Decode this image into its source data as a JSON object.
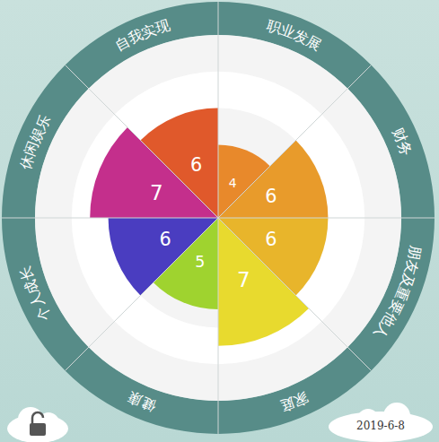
{
  "chart_data": {
    "type": "polar_area",
    "categories": [
      "职业发展",
      "财务",
      "朋友及重要他人",
      "家庭",
      "健康",
      "个人成长",
      "休闲娱乐",
      "自我实现"
    ],
    "values": [
      4,
      6,
      6,
      7,
      5,
      6,
      7,
      6
    ],
    "colors": [
      "#e8892b",
      "#e89b2b",
      "#e8b52b",
      "#e8da2e",
      "#9fd32f",
      "#4a3dc0",
      "#c42f8c",
      "#e0592b"
    ],
    "rlim": [
      0,
      10
    ],
    "rticks": [
      2,
      4,
      6,
      8,
      10
    ],
    "grid": true,
    "tick_labels": false,
    "data_labels": true,
    "annotation": "2019-6-8"
  }
}
